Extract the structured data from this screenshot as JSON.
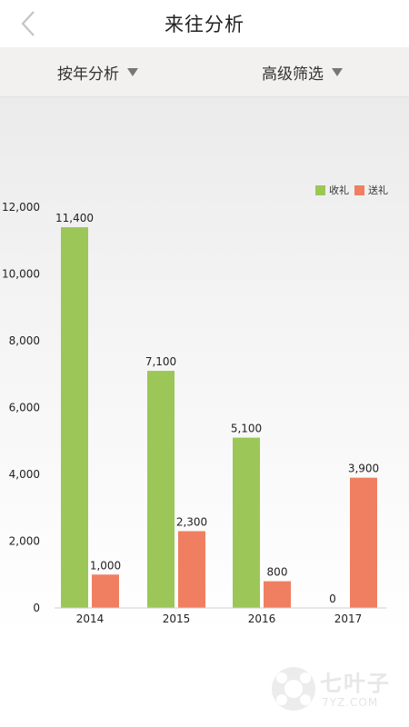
{
  "header": {
    "title": "来往分析",
    "back_icon": "chevron-left-icon"
  },
  "filters": [
    {
      "label": "按年分析",
      "icon": "triangle-down-icon"
    },
    {
      "label": "高级筛选",
      "icon": "triangle-down-icon"
    }
  ],
  "chart_data": {
    "type": "bar",
    "categories": [
      "2014",
      "2015",
      "2016",
      "2017"
    ],
    "series": [
      {
        "name": "收礼",
        "color": "#9cc657",
        "values": [
          11400,
          7100,
          5100,
          0
        ]
      },
      {
        "name": "送礼",
        "color": "#f07f62",
        "values": [
          1000,
          2300,
          800,
          3900
        ]
      }
    ],
    "data_labels": [
      [
        "11,400",
        "7,100",
        "5,100",
        "0"
      ],
      [
        "1,000",
        "2,300",
        "800",
        "3,900"
      ]
    ],
    "yticks": [
      "0",
      "2,000",
      "4,000",
      "6,000",
      "8,000",
      "10,000",
      "12,000"
    ],
    "ytick_values": [
      0,
      2000,
      4000,
      6000,
      8000,
      10000,
      12000
    ],
    "ylim": [
      0,
      12000
    ],
    "legend_position": "top-right",
    "grid": false
  },
  "watermark": {
    "text": "七叶子",
    "sub": "7YZ.COM"
  }
}
